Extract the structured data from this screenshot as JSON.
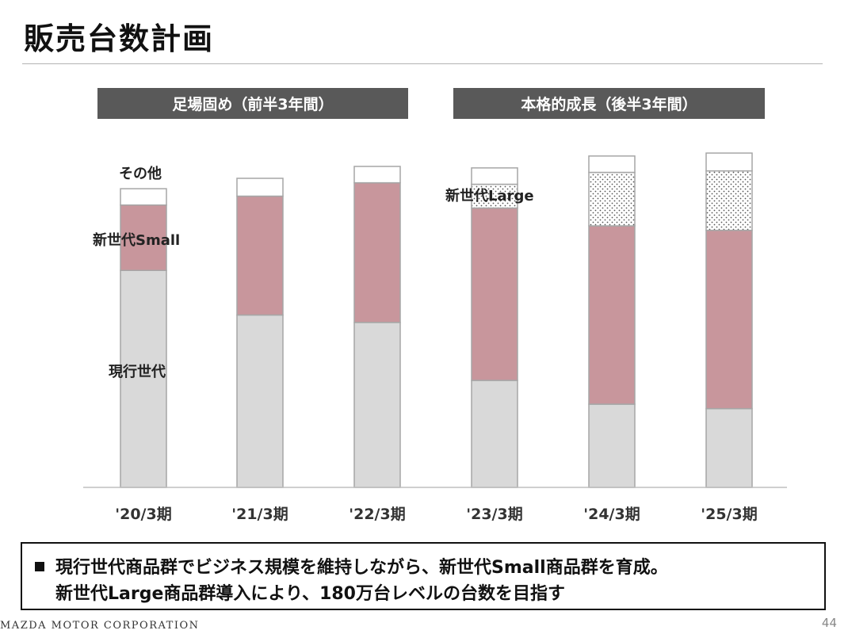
{
  "slide": {
    "title": "販売台数計画",
    "phases": [
      "足場固め（前半3年間）",
      "本格的成長（後半3年間）"
    ],
    "summary_line1": "現行世代商品群でビジネス規模を維持しながら、新世代Small商品群を育成。",
    "summary_line2": "新世代Large商品群導入により、180万台レベルの台数を目指す",
    "company": "MAZDA MOTOR CORPORATION",
    "page_number": "44"
  },
  "chart_data": {
    "type": "bar",
    "stacked": true,
    "categories": [
      "'20/3期",
      "'21/3期",
      "'22/3期",
      "'23/3期",
      "'24/3期",
      "'25/3期"
    ],
    "series": [
      {
        "name": "現行世代",
        "values": [
          73,
          58,
          55.5,
          36,
          28,
          26.5
        ],
        "color": "#d9d9d9",
        "pattern": "solid"
      },
      {
        "name": "新世代Small",
        "values": [
          22,
          40,
          47,
          58,
          60,
          60
        ],
        "color": "#c8969c",
        "pattern": "solid"
      },
      {
        "name": "新世代Large",
        "values": [
          0,
          0,
          0,
          8,
          18,
          20
        ],
        "color": "#ffffff",
        "pattern": "dots"
      },
      {
        "name": "その他",
        "values": [
          5.5,
          6,
          5.5,
          5.5,
          5.5,
          6
        ],
        "color": "#ffffff",
        "pattern": "solid"
      }
    ],
    "ylim": [
      0,
      120
    ],
    "grid": false,
    "legend": "inline"
  }
}
